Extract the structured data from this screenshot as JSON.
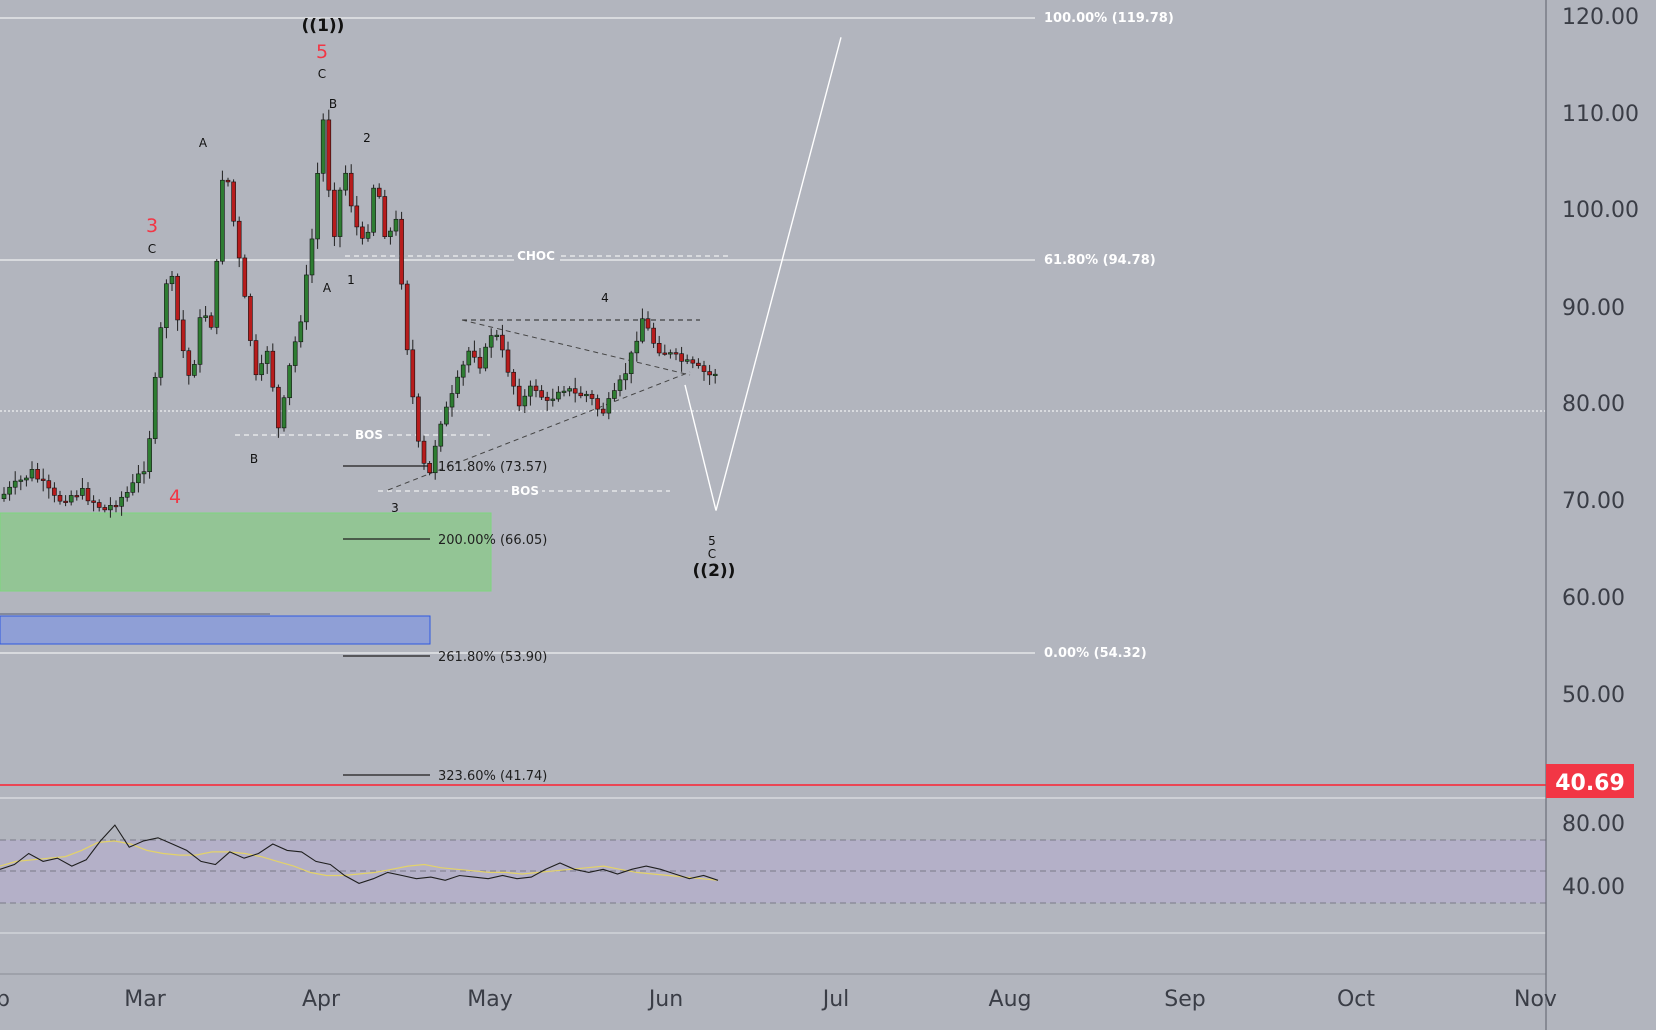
{
  "theme": {
    "background": "#b2b5be",
    "up_candle": "#2e7d32",
    "down_candle": "#b71c1c",
    "wick": "#1f1f1f",
    "fib_line": "#ffffff",
    "rsi_line": "#1f1f1f",
    "rsi_ma": "#e3d26a",
    "rsi_band": "#b4b0c8",
    "price_line": "#f23645",
    "demand_zone": "#93c595",
    "order_block": "#8f9fd6",
    "wave_red": "#f23645"
  },
  "price_axis": {
    "ticks": [
      "120.00",
      "110.00",
      "100.00",
      "90.00",
      "80.00",
      "70.00",
      "60.00",
      "50.00"
    ],
    "current_price_label": "40.69"
  },
  "rsi_axis": {
    "ticks": [
      "80.00",
      "40.00"
    ]
  },
  "time_axis": {
    "labels": [
      "b",
      "Mar",
      "Apr",
      "May",
      "Jun",
      "Jul",
      "Aug",
      "Sep",
      "Oct",
      "Nov"
    ]
  },
  "fib_retracement": {
    "high": "100.00% (119.78)",
    "mid": "61.80% (94.78)",
    "low": "0.00% (54.32)"
  },
  "fib_extension": {
    "e1": "161.80% (73.57)",
    "e2": "200.00% (66.05)",
    "e3": "261.80% (53.90)",
    "e4": "323.60% (41.74)"
  },
  "structure_labels": {
    "choc": "CHOC",
    "bos_upper": "BOS",
    "bos_lower": "BOS"
  },
  "waves": {
    "w1_major": "((1))",
    "w2_major": "((2))",
    "r3": "3",
    "r4": "4",
    "r5": "5",
    "c_at3": "C",
    "a_high": "A",
    "b_low": "B",
    "c_top": "C",
    "b_top": "B",
    "a_low": "A",
    "one": "1",
    "two": "2",
    "three": "3",
    "four": "4",
    "five": "5",
    "c_bottom": "C"
  },
  "chart_data": {
    "type": "candlestick",
    "title": "",
    "x_range": [
      "Feb",
      "Nov"
    ],
    "y_range": [
      30,
      125
    ],
    "current_price": 40.69,
    "anchors": [
      {
        "x": "Feb",
        "y": 69
      },
      {
        "x": "Feb",
        "y": 71
      },
      {
        "x": "Feb",
        "y": 73
      },
      {
        "x": "Feb",
        "y": 70
      },
      {
        "x": "Feb",
        "y": 71
      },
      {
        "x": "Feb",
        "y": 69
      },
      {
        "x": "Feb",
        "y": 71
      },
      {
        "x": "Mar",
        "y": 74
      },
      {
        "x": "Mar",
        "y": 85
      },
      {
        "x": "Mar",
        "y": 95
      },
      {
        "x": "Mar",
        "y": 87
      },
      {
        "x": "Mar",
        "y": 82
      },
      {
        "x": "Mar",
        "y": 90
      },
      {
        "x": "Mar",
        "y": 88
      },
      {
        "x": "Mar",
        "y": 106
      },
      {
        "x": "Mar",
        "y": 98
      },
      {
        "x": "Mar",
        "y": 90
      },
      {
        "x": "Mar",
        "y": 82
      },
      {
        "x": "Mar",
        "y": 86
      },
      {
        "x": "Mar",
        "y": 77
      },
      {
        "x": "Mar",
        "y": 84
      },
      {
        "x": "Mar",
        "y": 89
      },
      {
        "x": "Mar",
        "y": 97
      },
      {
        "x": "Apr",
        "y": 110
      },
      {
        "x": "Apr",
        "y": 97
      },
      {
        "x": "Apr",
        "y": 105
      },
      {
        "x": "Apr",
        "y": 99
      },
      {
        "x": "Apr",
        "y": 96
      },
      {
        "x": "Apr",
        "y": 104
      },
      {
        "x": "Apr",
        "y": 97
      },
      {
        "x": "Apr",
        "y": 99
      },
      {
        "x": "Apr",
        "y": 86
      },
      {
        "x": "Apr",
        "y": 76
      },
      {
        "x": "Apr",
        "y": 72
      },
      {
        "x": "Apr",
        "y": 78
      },
      {
        "x": "Apr",
        "y": 80
      },
      {
        "x": "Apr",
        "y": 83
      },
      {
        "x": "Apr",
        "y": 86
      },
      {
        "x": "Apr",
        "y": 84
      },
      {
        "x": "May",
        "y": 88
      },
      {
        "x": "May",
        "y": 84
      },
      {
        "x": "May",
        "y": 80
      },
      {
        "x": "May",
        "y": 82
      },
      {
        "x": "May",
        "y": 80
      },
      {
        "x": "May",
        "y": 82
      },
      {
        "x": "May",
        "y": 81
      },
      {
        "x": "May",
        "y": 81
      },
      {
        "x": "May",
        "y": 79
      },
      {
        "x": "May",
        "y": 81
      },
      {
        "x": "May",
        "y": 84
      },
      {
        "x": "May",
        "y": 89
      },
      {
        "x": "May",
        "y": 86
      },
      {
        "x": "Jun",
        "y": 85
      },
      {
        "x": "Jun",
        "y": 84
      },
      {
        "x": "Jun",
        "y": 83
      },
      {
        "x": "Jun",
        "y": 84
      },
      {
        "x": "Jun",
        "y": 82
      },
      {
        "x": "Jun",
        "y": 83
      },
      {
        "x": "Jun",
        "y": 85
      },
      {
        "x": "Jun",
        "y": 80
      },
      {
        "x": "Jun",
        "y": 79
      }
    ],
    "projection": [
      {
        "x": "Jun",
        "y": 82
      },
      {
        "x": "Jun",
        "y": 69
      },
      {
        "x": "Jul",
        "y": 118
      }
    ],
    "rsi_anchors": [
      50,
      53,
      60,
      55,
      57,
      52,
      56,
      68,
      78,
      64,
      68,
      70,
      66,
      62,
      55,
      53,
      61,
      57,
      60,
      66,
      62,
      61,
      55,
      53,
      46,
      41,
      44,
      48,
      46,
      44,
      45,
      43,
      46,
      45,
      44,
      46,
      44,
      45,
      50,
      54,
      50,
      48,
      50,
      47,
      50,
      52,
      50,
      47,
      44,
      46,
      43
    ],
    "rsi_ma_anchors": [
      52,
      55,
      56,
      57,
      58,
      62,
      67,
      68,
      66,
      62,
      60,
      59,
      59,
      61,
      61,
      60,
      58,
      55,
      52,
      48,
      46,
      46,
      47,
      48,
      50,
      52,
      53,
      51,
      50,
      49,
      48,
      48,
      47,
      48,
      49,
      50,
      51,
      52,
      50,
      48,
      47,
      46,
      45,
      44,
      43
    ]
  }
}
